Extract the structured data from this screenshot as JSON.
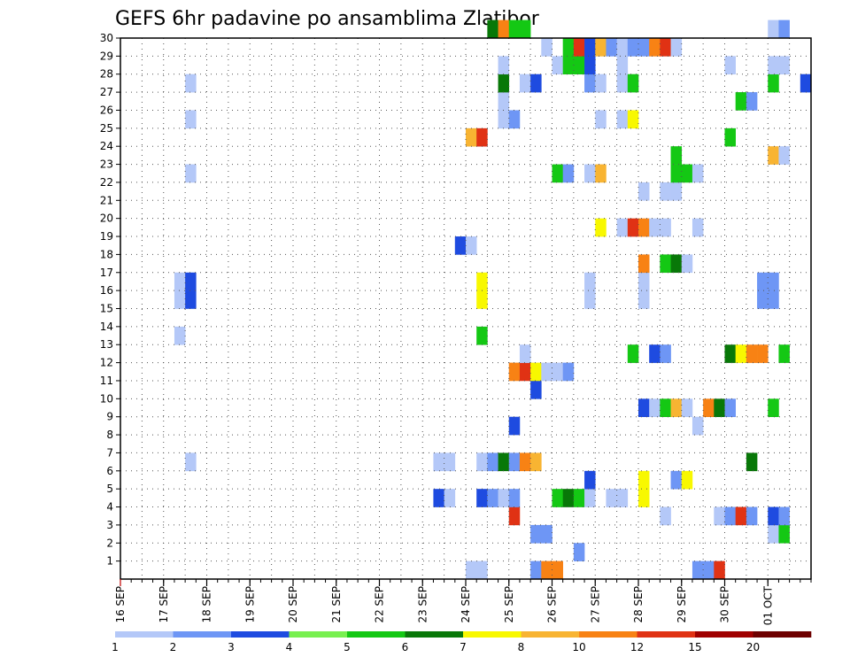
{
  "chart_data": {
    "type": "heatmap",
    "title": "GEFS 6hr padavine po ansamblima Zlatibor",
    "xlabel": "",
    "ylabel": "",
    "x_start_label": "16 SEP",
    "x_tick_labels": [
      "16 SEP",
      "17 SEP",
      "18 SEP",
      "19 SEP",
      "20 SEP",
      "21 SEP",
      "22 SEP",
      "23 SEP",
      "24 SEP",
      "25 SEP",
      "26 SEP",
      "27 SEP",
      "28 SEP",
      "29 SEP",
      "30 SEP",
      "01 OCT"
    ],
    "x_tick_dates": [
      "2016-09-16",
      "2016-09-17",
      "2016-09-18",
      "2016-09-19",
      "2016-09-20",
      "2016-09-21",
      "2016-09-22",
      "2016-09-23",
      "2016-09-24",
      "2016-09-25",
      "2016-09-26",
      "2016-09-27",
      "2016-09-28",
      "2016-09-29",
      "2016-09-30",
      "2016-10-01"
    ],
    "x_range": [
      "2016-09-16",
      "2016-10-01 18:00"
    ],
    "step_hours": 6,
    "y_tick_labels": [
      1,
      2,
      3,
      4,
      5,
      6,
      7,
      8,
      9,
      10,
      11,
      12,
      13,
      14,
      15,
      16,
      17,
      18,
      19,
      20,
      21,
      22,
      23,
      24,
      25,
      26,
      27,
      28,
      29,
      30
    ],
    "y_range": [
      0,
      30
    ],
    "grid": true,
    "colorbar": {
      "levels": [
        1,
        2,
        3,
        4,
        5,
        6,
        7,
        8,
        10,
        12,
        15,
        20
      ],
      "colors": [
        "#b4c8f8",
        "#6e96f5",
        "#1e4be0",
        "#78f050",
        "#14c814",
        "#087808",
        "#f8f800",
        "#f8b432",
        "#f88214",
        "#e03214",
        "#a00000",
        "#6e0000"
      ],
      "placement": "bottom"
    },
    "cells": [
      [
        0,
        "09-24 00",
        1
      ],
      [
        0,
        "09-24 06",
        1
      ],
      [
        0,
        "09-25 12",
        2
      ],
      [
        0,
        "09-25 18",
        11
      ],
      [
        0,
        "09-26 00",
        10
      ],
      [
        0,
        "09-29 06",
        2
      ],
      [
        0,
        "09-29 12",
        2
      ],
      [
        0,
        "09-29 18",
        13
      ],
      [
        1,
        "09-26 12",
        2
      ],
      [
        2,
        "09-25 12",
        2
      ],
      [
        2,
        "09-25 18",
        2
      ],
      [
        2,
        "10-01 00",
        1
      ],
      [
        2,
        "10-01 06",
        5
      ],
      [
        3,
        "09-25 00",
        13
      ],
      [
        3,
        "09-28 12",
        1
      ],
      [
        3,
        "09-29 18",
        1
      ],
      [
        3,
        "09-30 00",
        2
      ],
      [
        3,
        "09-30 06",
        14
      ],
      [
        3,
        "09-30 12",
        2
      ],
      [
        3,
        "10-01 00",
        3
      ],
      [
        3,
        "10-01 06",
        2
      ],
      [
        4,
        "09-23 06",
        3
      ],
      [
        4,
        "09-23 12",
        1
      ],
      [
        4,
        "09-24 06",
        3
      ],
      [
        4,
        "09-24 12",
        2
      ],
      [
        4,
        "09-24 18",
        1
      ],
      [
        4,
        "09-25 00",
        2
      ],
      [
        4,
        "09-26 00",
        5
      ],
      [
        4,
        "09-26 06",
        6
      ],
      [
        4,
        "09-26 12",
        5
      ],
      [
        4,
        "09-26 18",
        1
      ],
      [
        4,
        "09-27 06",
        1
      ],
      [
        4,
        "09-27 12",
        1
      ],
      [
        4,
        "09-28 00",
        7
      ],
      [
        5,
        "09-26 18",
        3
      ],
      [
        5,
        "09-28 00",
        7
      ],
      [
        5,
        "09-28 18",
        2
      ],
      [
        5,
        "09-29 00",
        7
      ],
      [
        6,
        "09-17 12",
        1
      ],
      [
        6,
        "09-23 06",
        1
      ],
      [
        6,
        "09-23 12",
        1
      ],
      [
        6,
        "09-24 06",
        1
      ],
      [
        6,
        "09-24 12",
        2
      ],
      [
        6,
        "09-24 18",
        6
      ],
      [
        6,
        "09-25 00",
        2
      ],
      [
        6,
        "09-25 06",
        11
      ],
      [
        6,
        "09-25 12",
        9
      ],
      [
        6,
        "09-30 12",
        6
      ],
      [
        8,
        "09-25 00",
        3
      ],
      [
        8,
        "09-29 06",
        1
      ],
      [
        9,
        "09-28 00",
        3
      ],
      [
        9,
        "09-28 06",
        1
      ],
      [
        9,
        "09-28 12",
        5
      ],
      [
        9,
        "09-28 18",
        9
      ],
      [
        9,
        "09-29 00",
        1
      ],
      [
        9,
        "09-29 12",
        10
      ],
      [
        9,
        "09-29 18",
        6
      ],
      [
        9,
        "09-30 00",
        2
      ],
      [
        9,
        "10-01 00",
        5
      ],
      [
        10,
        "09-25 12",
        3
      ],
      [
        11,
        "09-25 00",
        10
      ],
      [
        11,
        "09-25 06",
        13
      ],
      [
        11,
        "09-25 12",
        7
      ],
      [
        11,
        "09-25 18",
        1
      ],
      [
        11,
        "09-26 00",
        1
      ],
      [
        11,
        "09-26 06",
        2
      ],
      [
        12,
        "09-25 06",
        1
      ],
      [
        12,
        "09-27 18",
        5
      ],
      [
        12,
        "09-28 06",
        3
      ],
      [
        12,
        "09-28 12",
        2
      ],
      [
        12,
        "09-30 00",
        6
      ],
      [
        12,
        "09-30 06",
        7
      ],
      [
        12,
        "09-30 12",
        10
      ],
      [
        12,
        "09-30 18",
        10
      ],
      [
        12,
        "10-01 06",
        5
      ],
      [
        13,
        "09-17 06",
        1
      ],
      [
        13,
        "09-24 06",
        5
      ],
      [
        15,
        "09-17 06",
        1
      ],
      [
        15,
        "09-17 12",
        3
      ],
      [
        15,
        "09-24 06",
        7
      ],
      [
        15,
        "09-26 18",
        1
      ],
      [
        15,
        "09-28 00",
        1
      ],
      [
        15,
        "09-30 18",
        2
      ],
      [
        15,
        "10-01 00",
        2
      ],
      [
        16,
        "09-17 06",
        1
      ],
      [
        16,
        "09-17 12",
        3
      ],
      [
        16,
        "09-24 06",
        7
      ],
      [
        16,
        "09-26 18",
        1
      ],
      [
        16,
        "09-28 00",
        1
      ],
      [
        16,
        "09-30 18",
        2
      ],
      [
        16,
        "10-01 00",
        2
      ],
      [
        17,
        "09-28 00",
        10
      ],
      [
        17,
        "09-28 12",
        5
      ],
      [
        17,
        "09-28 18",
        6
      ],
      [
        17,
        "09-29 00",
        1
      ],
      [
        18,
        "09-23 18",
        3
      ],
      [
        18,
        "09-24 00",
        1
      ],
      [
        19,
        "09-27 00",
        7
      ],
      [
        19,
        "09-27 12",
        1
      ],
      [
        19,
        "09-27 18",
        14
      ],
      [
        19,
        "09-28 00",
        11
      ],
      [
        19,
        "09-28 06",
        1
      ],
      [
        19,
        "09-28 12",
        1
      ],
      [
        19,
        "09-29 06",
        1
      ],
      [
        21,
        "09-28 00",
        1
      ],
      [
        21,
        "09-28 12",
        1
      ],
      [
        21,
        "09-28 18",
        1
      ],
      [
        22,
        "09-17 12",
        1
      ],
      [
        22,
        "09-26 00",
        5
      ],
      [
        22,
        "09-26 06",
        2
      ],
      [
        22,
        "09-26 18",
        1
      ],
      [
        22,
        "09-27 00",
        8
      ],
      [
        22,
        "09-28 18",
        5
      ],
      [
        22,
        "09-29 00",
        5
      ],
      [
        22,
        "09-29 06",
        1
      ],
      [
        23,
        "09-28 18",
        5
      ],
      [
        23,
        "10-01 00",
        8
      ],
      [
        23,
        "10-01 06",
        1
      ],
      [
        24,
        "09-24 00",
        8
      ],
      [
        24,
        "09-24 06",
        12
      ],
      [
        24,
        "09-30 00",
        5
      ],
      [
        25,
        "09-17 12",
        1
      ],
      [
        25,
        "09-24 18",
        1
      ],
      [
        25,
        "09-25 00",
        2
      ],
      [
        25,
        "09-27 00",
        1
      ],
      [
        25,
        "09-27 12",
        1
      ],
      [
        25,
        "09-27 18",
        7
      ],
      [
        26,
        "09-24 18",
        1
      ],
      [
        26,
        "09-30 06",
        5
      ],
      [
        26,
        "09-30 12",
        2
      ],
      [
        27,
        "09-17 12",
        1
      ],
      [
        27,
        "09-24 18",
        6
      ],
      [
        27,
        "09-25 06",
        1
      ],
      [
        27,
        "09-25 12",
        3
      ],
      [
        27,
        "09-26 18",
        2
      ],
      [
        27,
        "09-27 00",
        1
      ],
      [
        27,
        "09-27 12",
        1
      ],
      [
        27,
        "09-27 18",
        5
      ],
      [
        27,
        "10-01 00",
        5
      ],
      [
        27,
        "10-01 18",
        3
      ],
      [
        28,
        "09-24 18",
        1
      ],
      [
        28,
        "09-26 00",
        1
      ],
      [
        28,
        "09-26 06",
        5
      ],
      [
        28,
        "09-26 12",
        5
      ],
      [
        28,
        "09-26 18",
        3
      ],
      [
        28,
        "09-27 12",
        1
      ],
      [
        28,
        "09-30 00",
        1
      ],
      [
        28,
        "10-01 00",
        1
      ],
      [
        28,
        "10-01 06",
        1
      ],
      [
        29,
        "09-25 18",
        1
      ],
      [
        29,
        "09-26 06",
        5
      ],
      [
        29,
        "09-26 12",
        13
      ],
      [
        29,
        "09-26 18",
        3
      ],
      [
        29,
        "09-27 00",
        8
      ],
      [
        29,
        "09-27 06",
        2
      ],
      [
        29,
        "09-27 12",
        1
      ],
      [
        29,
        "09-27 18",
        2
      ],
      [
        29,
        "09-28 00",
        2
      ],
      [
        29,
        "09-28 06",
        10
      ],
      [
        29,
        "09-28 12",
        13
      ],
      [
        29,
        "09-28 18",
        1
      ],
      [
        30,
        "09-24 12",
        6
      ],
      [
        30,
        "09-24 18",
        10
      ],
      [
        30,
        "09-25 00",
        5
      ],
      [
        30,
        "09-25 06",
        5
      ],
      [
        30,
        "10-01 00",
        1
      ],
      [
        30,
        "10-01 06",
        2
      ]
    ]
  }
}
